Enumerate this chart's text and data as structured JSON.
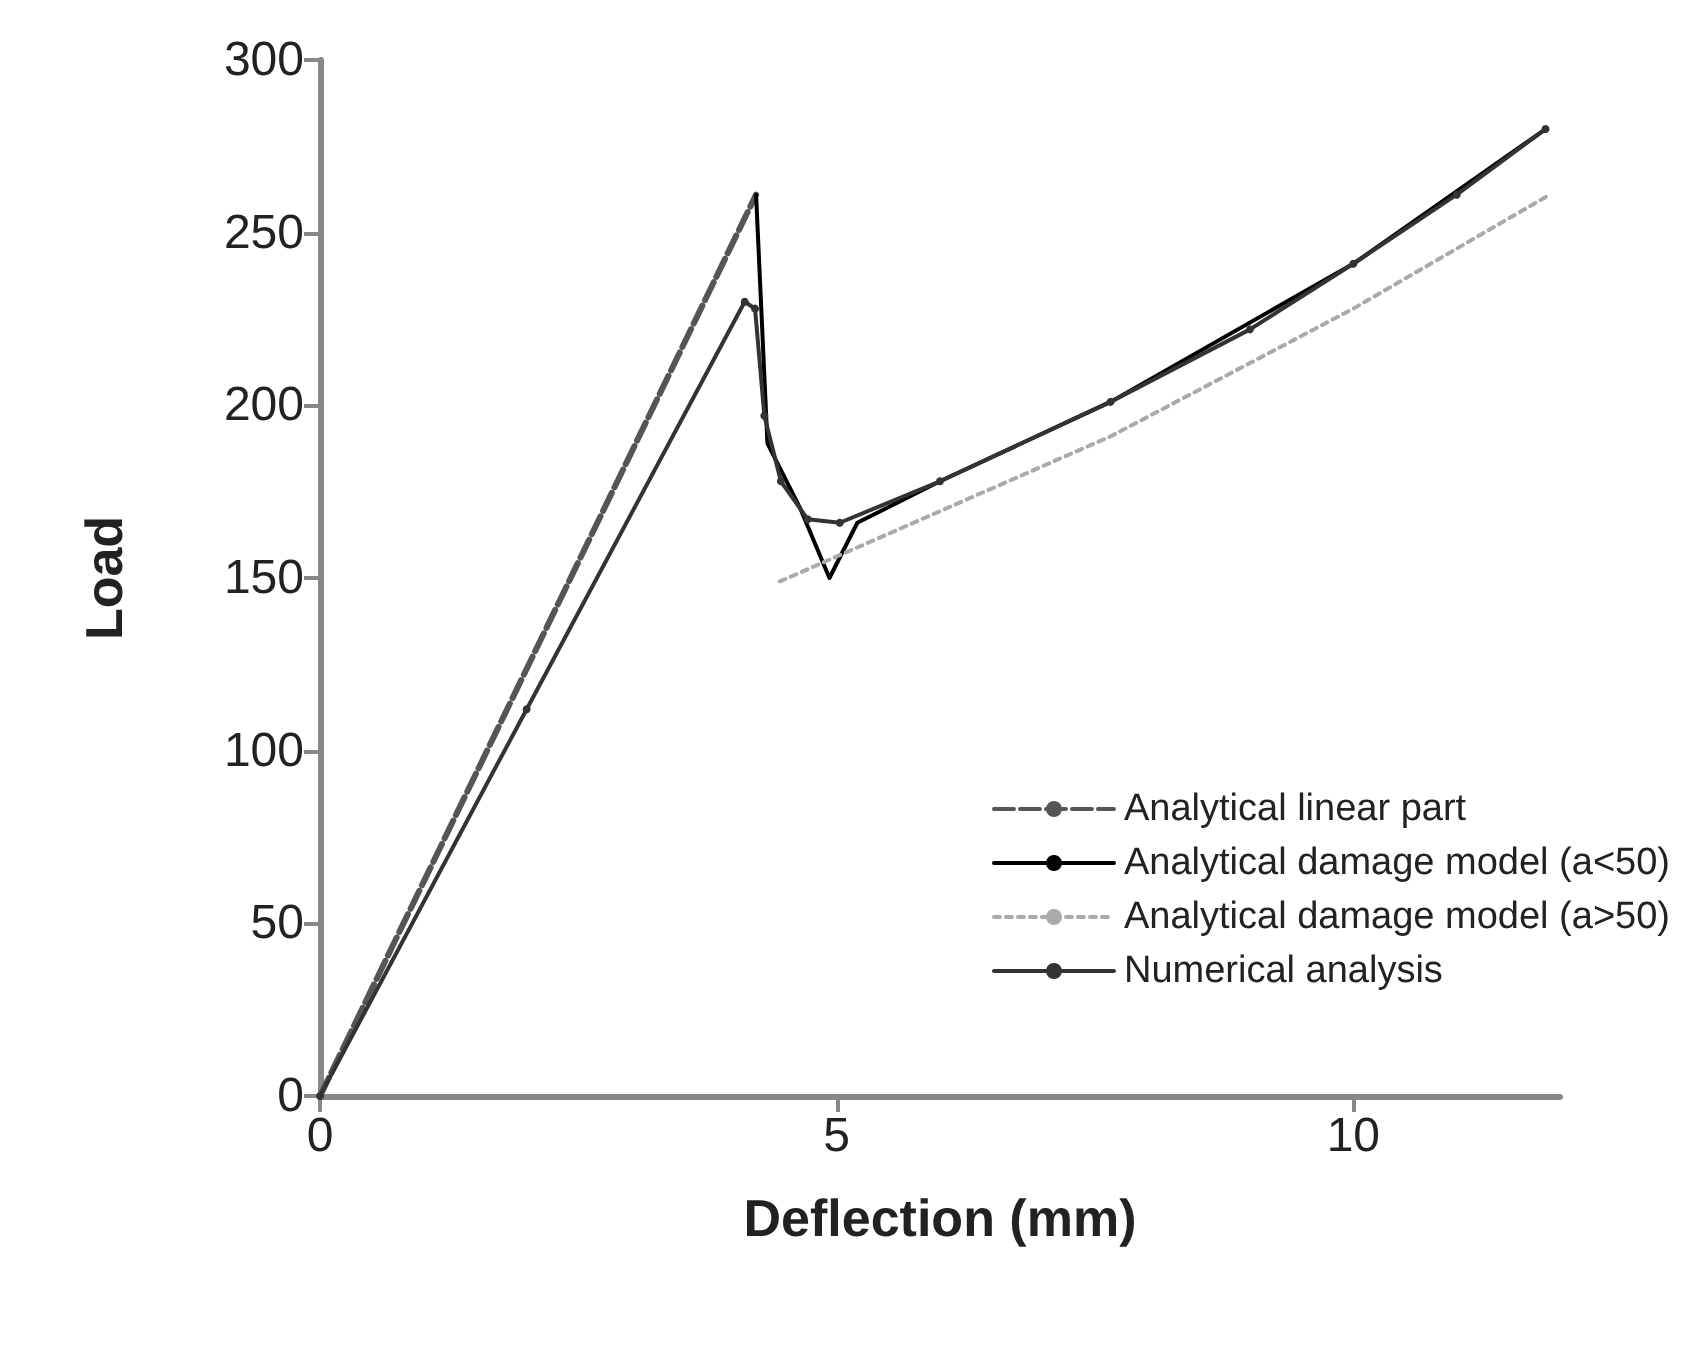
{
  "chart_data": {
    "type": "line",
    "xlabel": "Deflection (mm)",
    "ylabel": "Load",
    "xlim": [
      0,
      12
    ],
    "xticks": [
      0,
      5,
      10
    ],
    "ylim": [
      0,
      300
    ],
    "yticks": [
      0,
      50,
      100,
      150,
      200,
      250,
      300
    ],
    "grid": false,
    "legend": "bottom right",
    "series": [
      {
        "name": "Analytical linear part",
        "color": "#555555",
        "line_style": "dashed",
        "marker": "none",
        "x": [
          0,
          4.22
        ],
        "values": [
          0,
          261
        ]
      },
      {
        "name": "Analytical damage model (a<50)",
        "color": "#000000",
        "line_style": "solid",
        "marker": "none",
        "x": [
          4.22,
          4.33,
          4.65,
          4.93,
          5.2,
          6,
          7.65,
          10,
          11.86
        ],
        "values": [
          261,
          189,
          170,
          150,
          166,
          178,
          201,
          241,
          280
        ]
      },
      {
        "name": "Analytical damage model (a>50)",
        "color": "#aaaaaa",
        "line_style": "dotted",
        "marker": "none",
        "x": [
          4.45,
          7.65,
          10,
          11.9
        ],
        "values": [
          149,
          191,
          228,
          261
        ]
      },
      {
        "name": "Numerical analysis",
        "color": "#333333",
        "line_style": "solid",
        "marker": "circle",
        "x": [
          0,
          2,
          4.11,
          4.21,
          4.3,
          4.46,
          4.72,
          5.03,
          6,
          7.65,
          9,
          10,
          11,
          11.86
        ],
        "values": [
          0,
          112,
          230,
          228,
          197,
          178,
          167,
          166,
          178,
          201,
          222,
          241,
          261,
          280
        ]
      }
    ]
  }
}
